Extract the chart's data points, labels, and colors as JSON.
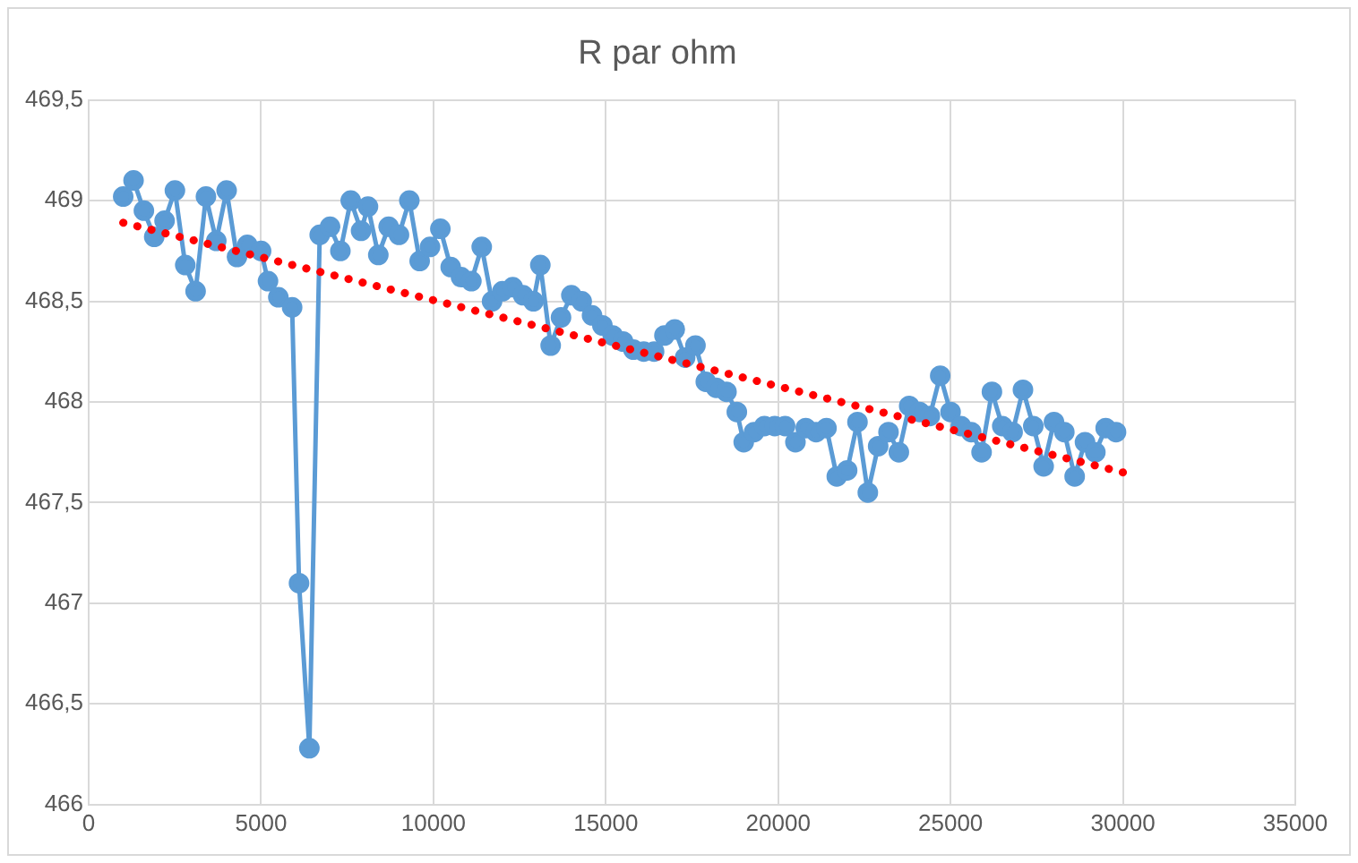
{
  "chart_data": {
    "type": "line",
    "title": "R par ohm",
    "xlim": [
      0,
      35000
    ],
    "xticks": [
      0,
      5000,
      10000,
      15000,
      20000,
      25000,
      30000,
      35000
    ],
    "ylim": [
      466,
      469.5
    ],
    "yticks": [
      466,
      {
        "value": 466.5,
        "label": "466,5"
      },
      467,
      {
        "value": 467.5,
        "label": "467,5"
      },
      468,
      {
        "value": 468.5,
        "label": "468,5"
      },
      469,
      {
        "value": 469.5,
        "label": "469,5"
      }
    ],
    "grid": true,
    "legend": false,
    "marker": "circle",
    "line_style": "solid",
    "series": [
      {
        "color": "#5b9bd5",
        "x": [
          1000,
          1300,
          1600,
          1900,
          2200,
          2500,
          2800,
          3100,
          3400,
          3700,
          4000,
          4300,
          4600,
          5000,
          5200,
          5500,
          5900,
          6100,
          6400,
          6700,
          7000,
          7300,
          7600,
          7900,
          8100,
          8400,
          8700,
          9000,
          9300,
          9600,
          9900,
          10200,
          10500,
          10800,
          11100,
          11400,
          11700,
          12000,
          12300,
          12600,
          12900,
          13100,
          13400,
          13700,
          14000,
          14300,
          14600,
          14900,
          15200,
          15500,
          15800,
          16100,
          16400,
          16700,
          17000,
          17300,
          17600,
          17900,
          18200,
          18500,
          18800,
          19000,
          19300,
          19600,
          19900,
          20200,
          20500,
          20800,
          21100,
          21400,
          21700,
          22000,
          22300,
          22600,
          22900,
          23200,
          23500,
          23800,
          24100,
          24400,
          24700,
          25000,
          25300,
          25600,
          25900,
          26200,
          26500,
          26800,
          27100,
          27400,
          27700,
          28000,
          28300,
          28600,
          28900,
          29200,
          29500,
          29800
        ],
        "values": [
          469.02,
          469.1,
          468.95,
          468.82,
          468.9,
          469.05,
          468.68,
          468.55,
          469.02,
          468.8,
          469.05,
          468.72,
          468.78,
          468.75,
          468.6,
          468.52,
          468.47,
          467.1,
          466.28,
          468.83,
          468.87,
          468.75,
          469.0,
          468.85,
          468.97,
          468.73,
          468.87,
          468.83,
          469.0,
          468.7,
          468.77,
          468.86,
          468.67,
          468.62,
          468.6,
          468.77,
          468.5,
          468.55,
          468.57,
          468.53,
          468.5,
          468.68,
          468.28,
          468.42,
          468.53,
          468.5,
          468.43,
          468.38,
          468.33,
          468.3,
          468.26,
          468.25,
          468.25,
          468.33,
          468.36,
          468.22,
          468.28,
          468.1,
          468.07,
          468.05,
          467.95,
          467.8,
          467.85,
          467.88,
          467.88,
          467.88,
          467.8,
          467.87,
          467.85,
          467.87,
          467.63,
          467.66,
          467.9,
          467.55,
          467.78,
          467.85,
          467.75,
          467.98,
          467.95,
          467.93,
          468.13,
          467.95,
          467.88,
          467.85,
          467.75,
          468.05,
          467.88,
          467.85,
          468.06,
          467.88,
          467.68,
          467.9,
          467.85,
          467.63,
          467.8,
          467.75,
          467.87,
          467.85
        ]
      },
      {
        "color": "#ff0000",
        "type": "line",
        "marker": "none",
        "line_style": "dotted",
        "x": [
          1000,
          30000
        ],
        "values": [
          468.89,
          467.65
        ]
      }
    ]
  }
}
